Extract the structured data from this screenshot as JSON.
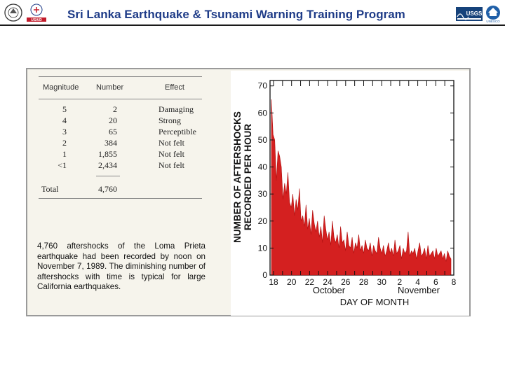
{
  "header": {
    "title": "Sri Lanka Earthquake & Tsunami Warning Training Program",
    "left_logos": [
      "seal-icon",
      "USAID"
    ],
    "right_logos": [
      "USGS",
      "UNESCO"
    ],
    "colors": {
      "title": "#1f3c88",
      "rule": "#1a1a1a"
    }
  },
  "figure": {
    "table": {
      "columns": [
        "Magnitude",
        "Number",
        "Effect"
      ],
      "rows": [
        {
          "magnitude": "5",
          "number": "2",
          "effect": "Damaging"
        },
        {
          "magnitude": "4",
          "number": "20",
          "effect": "Strong"
        },
        {
          "magnitude": "3",
          "number": "65",
          "effect": "Perceptible"
        },
        {
          "magnitude": "2",
          "number": "384",
          "effect": "Not felt"
        },
        {
          "magnitude": "1",
          "number": "1,855",
          "effect": "Not felt"
        },
        {
          "magnitude": "<1",
          "number": "2,434",
          "effect": "Not felt"
        }
      ],
      "total_label": "Total",
      "total_value": "4,760"
    },
    "caption": "4,760 aftershocks of the Loma Prieta earthquake had been recorded by noon on November 7, 1989. The diminishing number of aftershocks with time is typical for large California earthquakes."
  },
  "chart_data": {
    "type": "area",
    "title": "",
    "ylabel_line1": "NUMBER OF AFTERSHOCKS",
    "ylabel_line2": "RECORDED PER HOUR",
    "xlabel": "DAY OF MONTH",
    "month_labels": [
      "October",
      "November"
    ],
    "x_ticks": [
      "18",
      "20",
      "22",
      "24",
      "26",
      "28",
      "30",
      "2",
      "4",
      "6",
      "8"
    ],
    "y_ticks": [
      0,
      10,
      20,
      30,
      40,
      50,
      60,
      70
    ],
    "ylim": [
      0,
      72
    ],
    "fill_color": "#d42020",
    "series": [
      {
        "x_day_index_start": 0,
        "values": [
          65,
          52,
          50,
          35,
          46,
          44,
          40,
          28,
          34,
          30,
          38,
          27,
          25,
          30,
          22,
          28,
          24,
          32,
          20,
          22,
          18,
          26,
          17,
          21,
          15,
          24,
          19,
          16,
          20,
          14,
          18,
          12,
          22,
          17,
          13,
          16,
          11,
          20,
          14,
          12,
          15,
          10,
          18,
          12,
          13,
          9,
          16,
          11,
          10,
          14,
          8,
          12,
          10,
          15,
          9,
          11,
          8,
          13,
          10,
          9,
          12,
          7,
          11,
          9,
          8,
          14,
          10,
          8,
          11,
          7,
          9,
          12,
          8,
          10,
          7,
          13,
          8,
          9,
          11,
          6,
          10,
          8,
          9,
          16,
          7,
          9,
          8,
          10,
          6,
          9,
          12,
          7,
          8,
          10,
          6,
          11,
          7,
          8,
          9,
          6,
          10,
          7,
          8,
          9,
          6,
          8,
          5,
          9,
          7,
          6
        ]
      }
    ]
  }
}
